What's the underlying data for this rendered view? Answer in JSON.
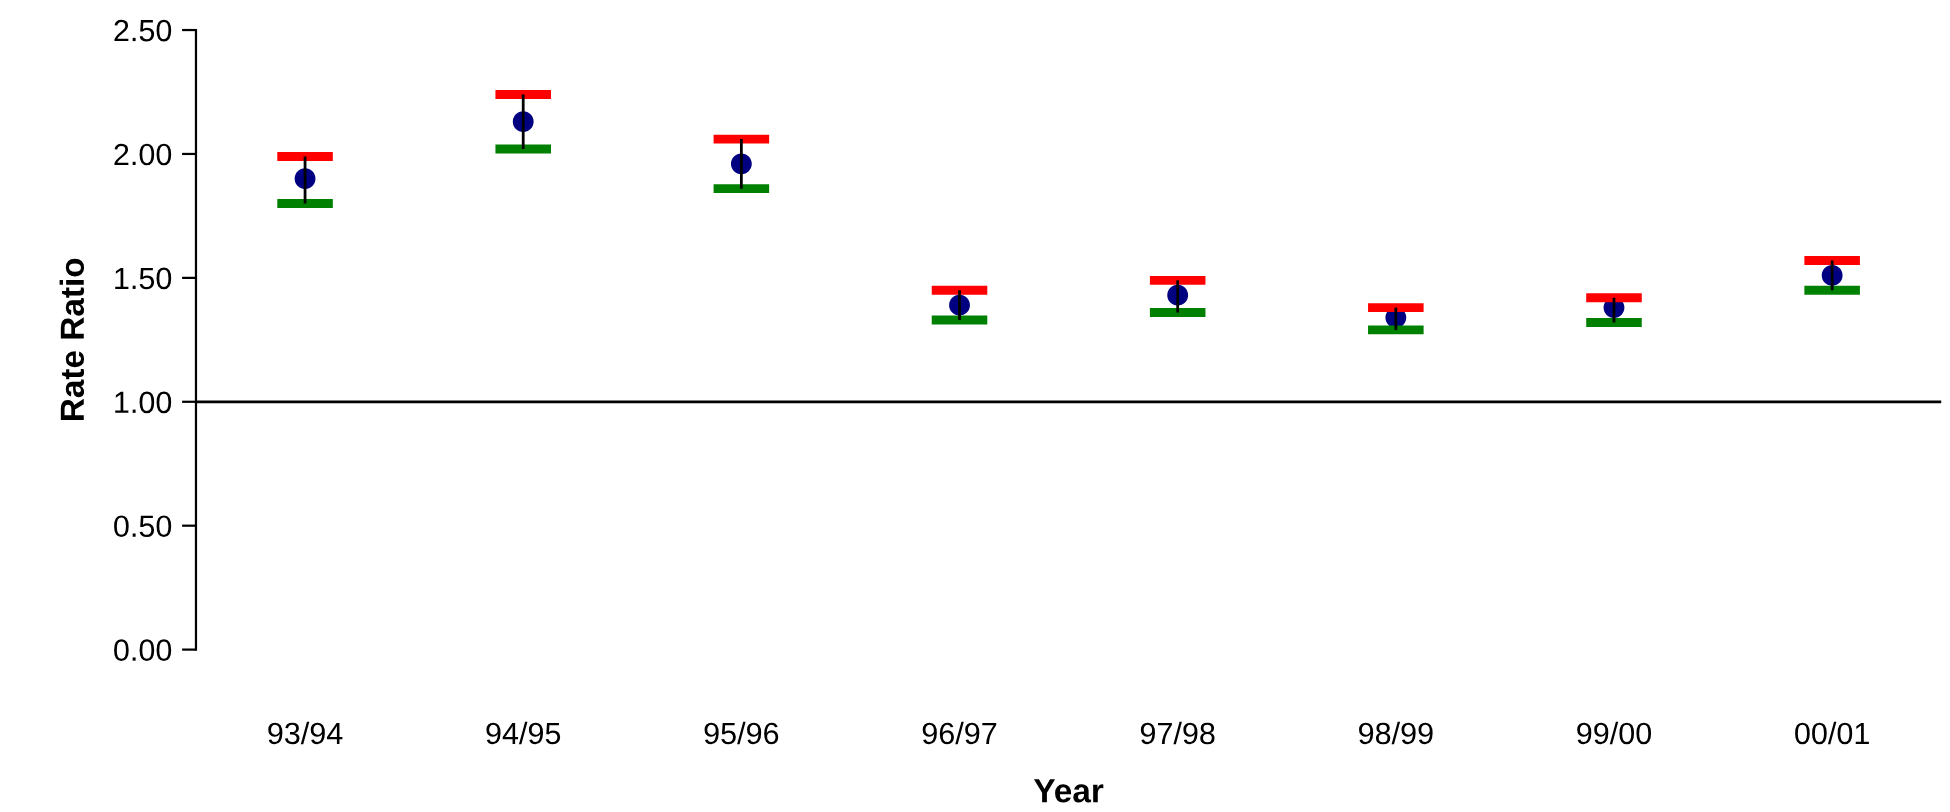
{
  "chart_data": {
    "type": "scatter",
    "xlabel": "Year",
    "ylabel": "Rate Ratio",
    "categories": [
      "93/94",
      "94/95",
      "95/96",
      "96/97",
      "97/98",
      "98/99",
      "99/00",
      "00/01"
    ],
    "series": [
      {
        "marker": "circle",
        "color": "#000080",
        "values": [
          1.9,
          2.13,
          1.96,
          1.39,
          1.43,
          1.34,
          1.38,
          1.51
        ],
        "errors": [
          [
            1.8,
            1.99
          ],
          [
            2.02,
            2.24
          ],
          [
            1.86,
            2.06
          ],
          [
            1.33,
            1.45
          ],
          [
            1.36,
            1.49
          ],
          [
            1.29,
            1.38
          ],
          [
            1.32,
            1.42
          ],
          [
            1.45,
            1.57
          ]
        ]
      }
    ],
    "ylim": [
      0,
      2.5
    ],
    "yticks": [
      {
        "value": 0,
        "label": "0.00"
      },
      {
        "value": 0.5,
        "label": "0.50"
      },
      {
        "value": 1,
        "label": "1.00"
      },
      {
        "value": 1.5,
        "label": "1.50"
      },
      {
        "value": 2,
        "label": "2.00"
      },
      {
        "value": 2.5,
        "label": "2.50"
      }
    ],
    "ref_lines": [
      {
        "axis": "y",
        "value": 1,
        "color": "#000000",
        "line_style": "solid"
      }
    ],
    "grid": false,
    "legend": false
  }
}
